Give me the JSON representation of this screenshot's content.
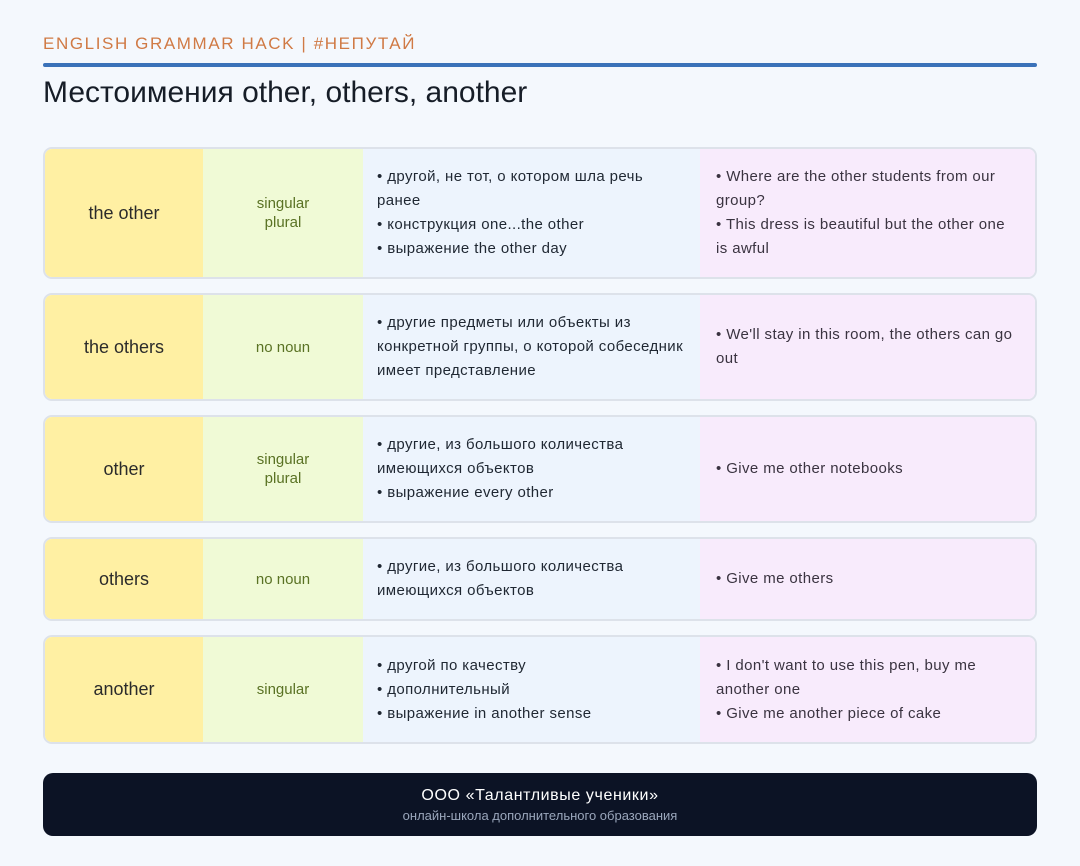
{
  "header": {
    "kicker": "ENGLISH GRAMMAR HACK | #НЕПУТАЙ",
    "title": "Местоимения other, others, another"
  },
  "rows": [
    {
      "term": "the other",
      "grammar": [
        "singular",
        "plural"
      ],
      "meanings": [
        "• другой, не тот, о котором шла речь ранее",
        "• конструкция one...the other",
        "• выражение the other day"
      ],
      "examples": [
        "• Where are the other students from our group?",
        "• This dress is beautiful but the other one is awful"
      ]
    },
    {
      "term": "the others",
      "grammar": [
        "no noun"
      ],
      "meanings": [
        "• другие предметы или объекты из конкретной группы, о которой собеседник имеет представление"
      ],
      "examples": [
        "• We'll stay in this room, the others can go out"
      ]
    },
    {
      "term": "other",
      "grammar": [
        "singular",
        "plural"
      ],
      "meanings": [
        "• другие, из большого количества имеющихся объектов",
        "• выражение every other"
      ],
      "examples": [
        "• Give me other notebooks"
      ]
    },
    {
      "term": "others",
      "grammar": [
        "no noun"
      ],
      "meanings": [
        "• другие, из большого количества имеющихся объектов"
      ],
      "examples": [
        "• Give me others"
      ]
    },
    {
      "term": "another",
      "grammar": [
        "singular"
      ],
      "meanings": [
        "• другой по качеству",
        "• дополнительный",
        "• выражение in another sense"
      ],
      "examples": [
        "• I don't want to use this pen, buy me another one",
        "• Give me another piece of cake"
      ]
    }
  ],
  "footer": {
    "org": "ООО «Талантливые ученики»",
    "subtitle": "онлайн-школа дополнительного образования"
  }
}
